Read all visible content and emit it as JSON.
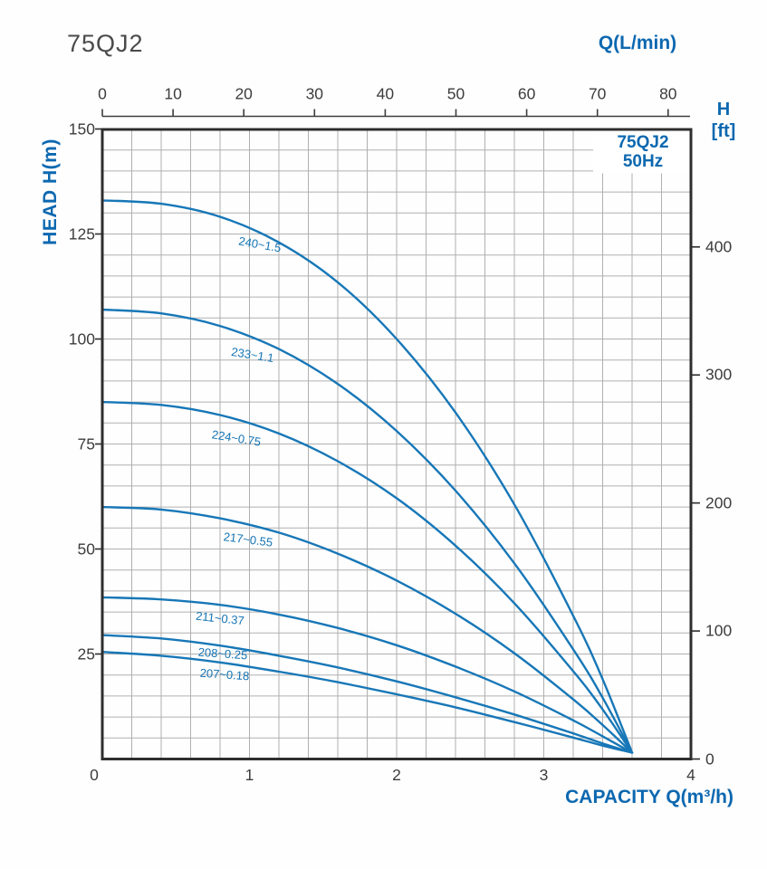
{
  "page_title": "75QJ2",
  "colors": {
    "curve": "#1777b7",
    "blue_text": "#0c68b0",
    "title_text": "#4a4a4a",
    "tick_text": "#3d3d3d",
    "grid": "#b0b0b0",
    "border": "#2e2e2e"
  },
  "chart_data": {
    "type": "line",
    "title": "75QJ2",
    "frequency_box": {
      "line1": "75QJ2",
      "line2": "50Hz"
    },
    "axes": {
      "bottom": {
        "label": "CAPACITY Q(m³/h)",
        "ticks": [
          0,
          1,
          2,
          3,
          4
        ],
        "range": [
          0,
          4
        ]
      },
      "left": {
        "label": "HEAD H(m)",
        "ticks": [
          150,
          125,
          100,
          75,
          50,
          25
        ],
        "range": [
          0,
          150
        ]
      },
      "top": {
        "label": "Q(L/min)",
        "ticks": [
          0,
          10,
          20,
          30,
          40,
          50,
          60,
          70,
          80
        ]
      },
      "right": {
        "label_line1": "H",
        "label_line2": "[ft]",
        "ticks": [
          400,
          300,
          200,
          100,
          0
        ]
      }
    },
    "grid": {
      "x_step": 0.2,
      "y_step": 5,
      "grid_on": true
    },
    "q_values": [
      0,
      0.4,
      0.8,
      1.2,
      1.6,
      2.0,
      2.4,
      2.8,
      3.2,
      3.4,
      3.6
    ],
    "series": [
      {
        "name": "240~1.5",
        "head": [
          133,
          132.2,
          129.1,
          123,
          113.5,
          100,
          82.5,
          60.6,
          34.1,
          19,
          1.5
        ],
        "label": {
          "q": 1.07,
          "h": 122.5,
          "angle": 10
        }
      },
      {
        "name": "233~1.1",
        "head": [
          107,
          106.1,
          103.1,
          97.6,
          89.3,
          78.1,
          63.9,
          46.6,
          26.1,
          14.6,
          1.5
        ],
        "label": {
          "q": 1.02,
          "h": 96.3,
          "angle": 9
        }
      },
      {
        "name": "224~0.75",
        "head": [
          85,
          84.3,
          81.9,
          77.5,
          70.9,
          62.1,
          50.8,
          37.1,
          20.9,
          11.8,
          1.5
        ],
        "label": {
          "q": 0.91,
          "h": 76.5,
          "angle": 9
        }
      },
      {
        "name": "217~0.55",
        "head": [
          60,
          59.4,
          57.3,
          53.9,
          48.9,
          42.5,
          34.6,
          25.2,
          14.2,
          8.1,
          1.5
        ],
        "label": {
          "q": 0.99,
          "h": 52.2,
          "angle": 7
        }
      },
      {
        "name": "211~0.37",
        "head": [
          38.5,
          38,
          36.7,
          34.4,
          31.2,
          27.1,
          22,
          16.1,
          9.2,
          5.4,
          1.5
        ],
        "label": {
          "q": 0.8,
          "h": 33.5,
          "angle": 6
        }
      },
      {
        "name": "208~0.25",
        "head": [
          29.5,
          28.7,
          27,
          24.6,
          21.8,
          18.5,
          14.7,
          10.6,
          6.1,
          3.7,
          1.5
        ],
        "label": {
          "q": 0.82,
          "h": 25.1,
          "angle": 4
        }
      },
      {
        "name": "207~0.18",
        "head": [
          25.5,
          24.6,
          23,
          20.8,
          18.3,
          15.4,
          12.3,
          8.8,
          5.1,
          3.2,
          1.5
        ],
        "label": {
          "q": 0.83,
          "h": 20.1,
          "angle": 4
        }
      }
    ]
  }
}
